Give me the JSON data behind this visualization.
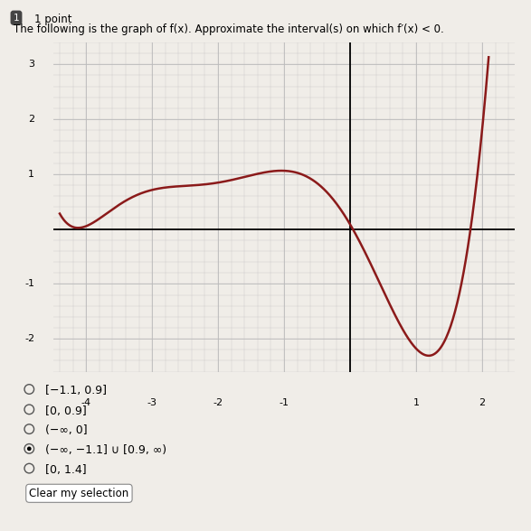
{
  "xlim": [
    -4.5,
    2.5
  ],
  "ylim": [
    -2.6,
    3.4
  ],
  "xticks": [
    -4,
    -3,
    -2,
    -1,
    0,
    1,
    2
  ],
  "yticks": [
    -2,
    -1,
    1,
    2,
    3
  ],
  "curve_color": "#8B1A1A",
  "curve_linewidth": 1.8,
  "background_color": "#f0ede8",
  "grid_color": "#bbbbbb",
  "choice1": "[−1.1, 0.9]",
  "choice2": "[0, 0.9]",
  "choice3": "(−∞, 0]",
  "choice4": "(−∞, −1.1] ∪ [0.9, ∞)",
  "choice5": "[0, 1.4]",
  "selected_choice_index": 3,
  "header_num": "1",
  "header_pt": "1 point",
  "question": "The following is the graph of f(x). Approximate the interval(s) on which f′(x) < 0."
}
